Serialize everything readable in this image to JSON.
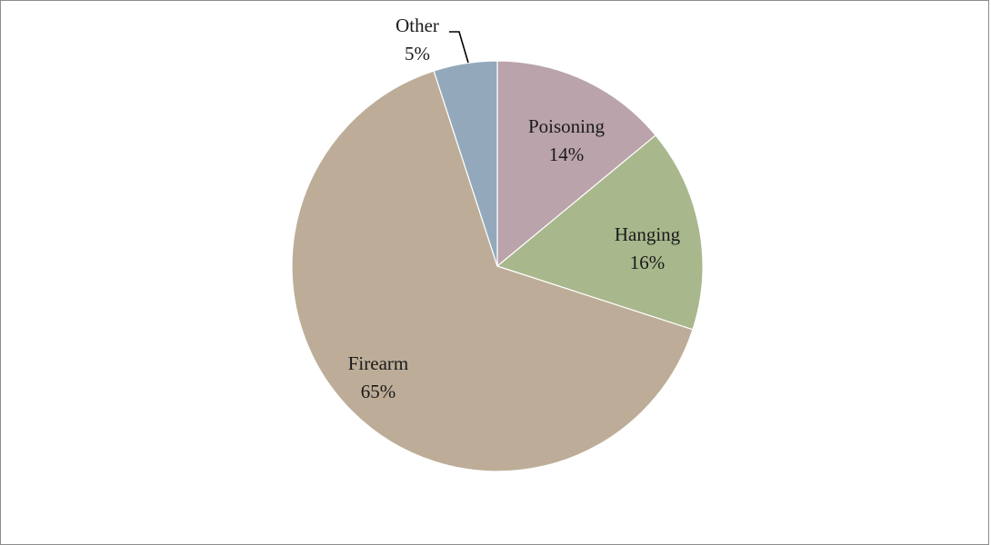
{
  "chart_data": {
    "type": "pie",
    "title": "",
    "slices": [
      {
        "label": "Poisoning",
        "value": 14,
        "display": "14%",
        "color": "#baa3aa"
      },
      {
        "label": "Hanging",
        "value": 16,
        "display": "16%",
        "color": "#a8b78c"
      },
      {
        "label": "Firearm",
        "value": 65,
        "display": "65%",
        "color": "#bdad98"
      },
      {
        "label": "Other",
        "value": 5,
        "display": "5%",
        "color": "#93a9bb"
      }
    ],
    "legend": "none",
    "start_angle_deg": 0,
    "direction": "clockwise"
  }
}
